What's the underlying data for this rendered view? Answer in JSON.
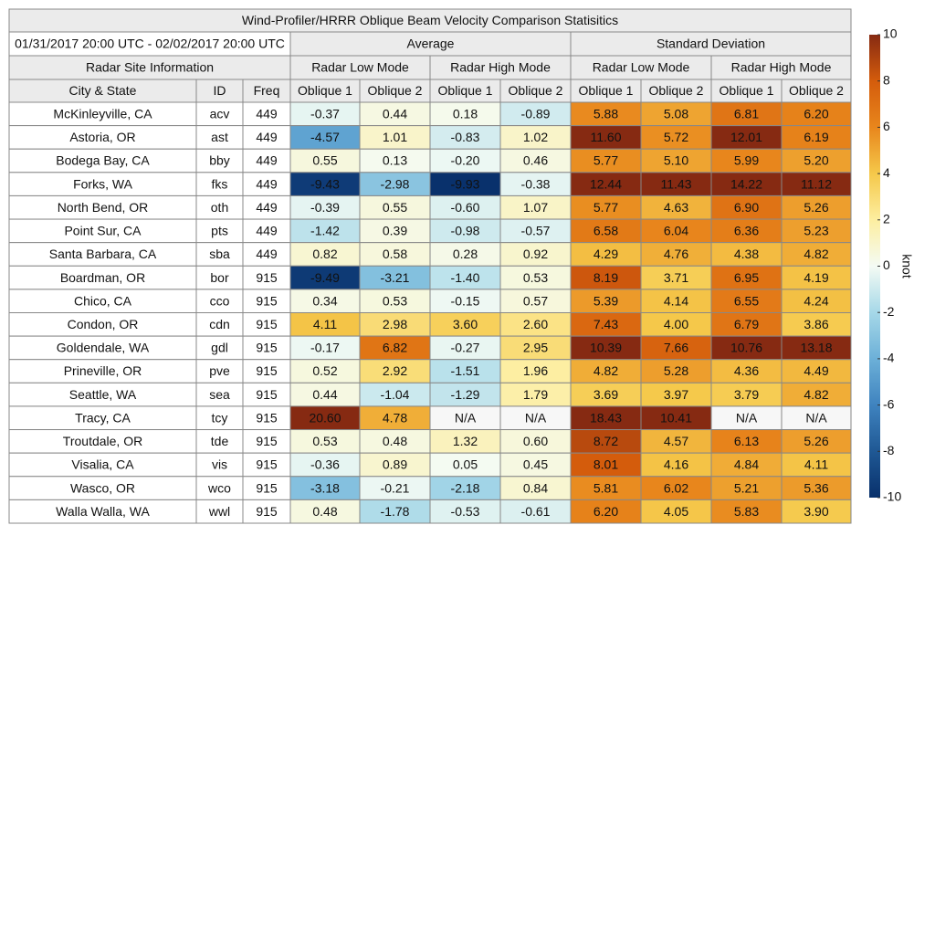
{
  "header": {
    "title": "Wind-Profiler/HRRR Oblique Beam Velocity Comparison Statisitics",
    "period": "01/31/2017 20:00 UTC - 02/02/2017 20:00 UTC",
    "site_label": "Radar Site Information",
    "site_columns": [
      "City & State",
      "ID",
      "Freq"
    ],
    "groups": [
      {
        "label": "Average",
        "modes": [
          {
            "label": "Radar Low Mode",
            "columns": [
              "Oblique 1",
              "Oblique 2"
            ]
          },
          {
            "label": "Radar High Mode",
            "columns": [
              "Oblique 1",
              "Oblique 2"
            ]
          }
        ]
      },
      {
        "label": "Standard Deviation",
        "modes": [
          {
            "label": "Radar Low Mode",
            "columns": [
              "Oblique 1",
              "Oblique 2"
            ]
          },
          {
            "label": "Radar High Mode",
            "columns": [
              "Oblique 1",
              "Oblique 2"
            ]
          }
        ]
      }
    ]
  },
  "table": {
    "rows": [
      [
        "McKinleyville, CA",
        "acv",
        "449",
        "-0.37",
        "0.44",
        "0.18",
        "-0.89",
        "5.88",
        "5.08",
        "6.81",
        "6.20"
      ],
      [
        "Astoria, OR",
        "ast",
        "449",
        "-4.57",
        "1.01",
        "-0.83",
        "1.02",
        "11.60",
        "5.72",
        "12.01",
        "6.19"
      ],
      [
        "Bodega Bay, CA",
        "bby",
        "449",
        "0.55",
        "0.13",
        "-0.20",
        "0.46",
        "5.77",
        "5.10",
        "5.99",
        "5.20"
      ],
      [
        "Forks, WA",
        "fks",
        "449",
        "-9.43",
        "-2.98",
        "-9.93",
        "-0.38",
        "12.44",
        "11.43",
        "14.22",
        "11.12"
      ],
      [
        "North Bend, OR",
        "oth",
        "449",
        "-0.39",
        "0.55",
        "-0.60",
        "1.07",
        "5.77",
        "4.63",
        "6.90",
        "5.26"
      ],
      [
        "Point Sur, CA",
        "pts",
        "449",
        "-1.42",
        "0.39",
        "-0.98",
        "-0.57",
        "6.58",
        "6.04",
        "6.36",
        "5.23"
      ],
      [
        "Santa Barbara, CA",
        "sba",
        "449",
        "0.82",
        "0.58",
        "0.28",
        "0.92",
        "4.29",
        "4.76",
        "4.38",
        "4.82"
      ],
      [
        "Boardman, OR",
        "bor",
        "915",
        "-9.49",
        "-3.21",
        "-1.40",
        "0.53",
        "8.19",
        "3.71",
        "6.95",
        "4.19"
      ],
      [
        "Chico, CA",
        "cco",
        "915",
        "0.34",
        "0.53",
        "-0.15",
        "0.57",
        "5.39",
        "4.14",
        "6.55",
        "4.24"
      ],
      [
        "Condon, OR",
        "cdn",
        "915",
        "4.11",
        "2.98",
        "3.60",
        "2.60",
        "7.43",
        "4.00",
        "6.79",
        "3.86"
      ],
      [
        "Goldendale, WA",
        "gdl",
        "915",
        "-0.17",
        "6.82",
        "-0.27",
        "2.95",
        "10.39",
        "7.66",
        "10.76",
        "13.18"
      ],
      [
        "Prineville, OR",
        "pve",
        "915",
        "0.52",
        "2.92",
        "-1.51",
        "1.96",
        "4.82",
        "5.28",
        "4.36",
        "4.49"
      ],
      [
        "Seattle, WA",
        "sea",
        "915",
        "0.44",
        "-1.04",
        "-1.29",
        "1.79",
        "3.69",
        "3.97",
        "3.79",
        "4.82"
      ],
      [
        "Tracy, CA",
        "tcy",
        "915",
        "20.60",
        "4.78",
        "N/A",
        "N/A",
        "18.43",
        "10.41",
        "N/A",
        "N/A"
      ],
      [
        "Troutdale, OR",
        "tde",
        "915",
        "0.53",
        "0.48",
        "1.32",
        "0.60",
        "8.72",
        "4.57",
        "6.13",
        "5.26"
      ],
      [
        "Visalia, CA",
        "vis",
        "915",
        "-0.36",
        "0.89",
        "0.05",
        "0.45",
        "8.01",
        "4.16",
        "4.84",
        "4.11"
      ],
      [
        "Wasco, OR",
        "wco",
        "915",
        "-3.18",
        "-0.21",
        "-2.18",
        "0.84",
        "5.81",
        "6.02",
        "5.21",
        "5.36"
      ],
      [
        "Walla Walla, WA",
        "wwl",
        "915",
        "0.48",
        "-1.78",
        "-0.53",
        "-0.61",
        "6.20",
        "4.05",
        "5.83",
        "3.90"
      ]
    ]
  },
  "colorbar": {
    "label": "knot",
    "lim": [
      -10,
      10
    ],
    "ticks": [
      -10,
      -8,
      -6,
      -4,
      -2,
      0,
      2,
      4,
      6,
      8,
      10
    ],
    "colors": [
      "#08306b",
      "#1f5894",
      "#3f83bf",
      "#6cb0d8",
      "#a6d8e8",
      "#f4fbf4",
      "#fdeea0",
      "#f5c84a",
      "#e8861c",
      "#d45c0c",
      "#862a12"
    ]
  }
}
